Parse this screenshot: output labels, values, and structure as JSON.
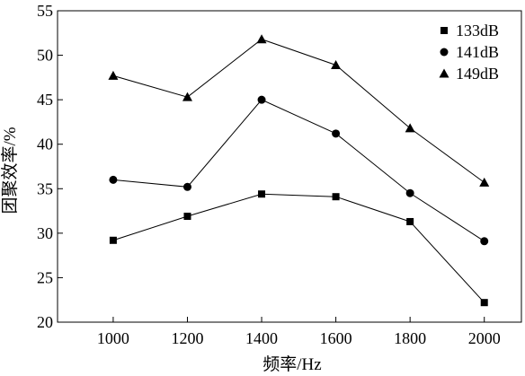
{
  "chart_data": {
    "type": "line",
    "x": [
      1000,
      1200,
      1400,
      1600,
      1800,
      2000
    ],
    "xlabel": "频率/Hz",
    "ylabel": "团聚效率/%",
    "xlim": [
      850,
      2100
    ],
    "ylim": [
      20,
      55
    ],
    "xticks": [
      1000,
      1200,
      1400,
      1600,
      1800,
      2000
    ],
    "yticks": [
      20,
      25,
      30,
      35,
      40,
      45,
      50,
      55
    ],
    "grid": false,
    "legend_position": "top-right",
    "series": [
      {
        "name": "133dB",
        "marker": "square",
        "values": [
          29.2,
          31.9,
          34.4,
          34.1,
          31.3,
          22.2
        ]
      },
      {
        "name": "141dB",
        "marker": "circle",
        "values": [
          36.0,
          35.2,
          45.0,
          41.2,
          34.5,
          29.1
        ]
      },
      {
        "name": "149dB",
        "marker": "triangle",
        "values": [
          47.7,
          45.3,
          51.8,
          48.9,
          41.8,
          35.7
        ]
      }
    ]
  }
}
